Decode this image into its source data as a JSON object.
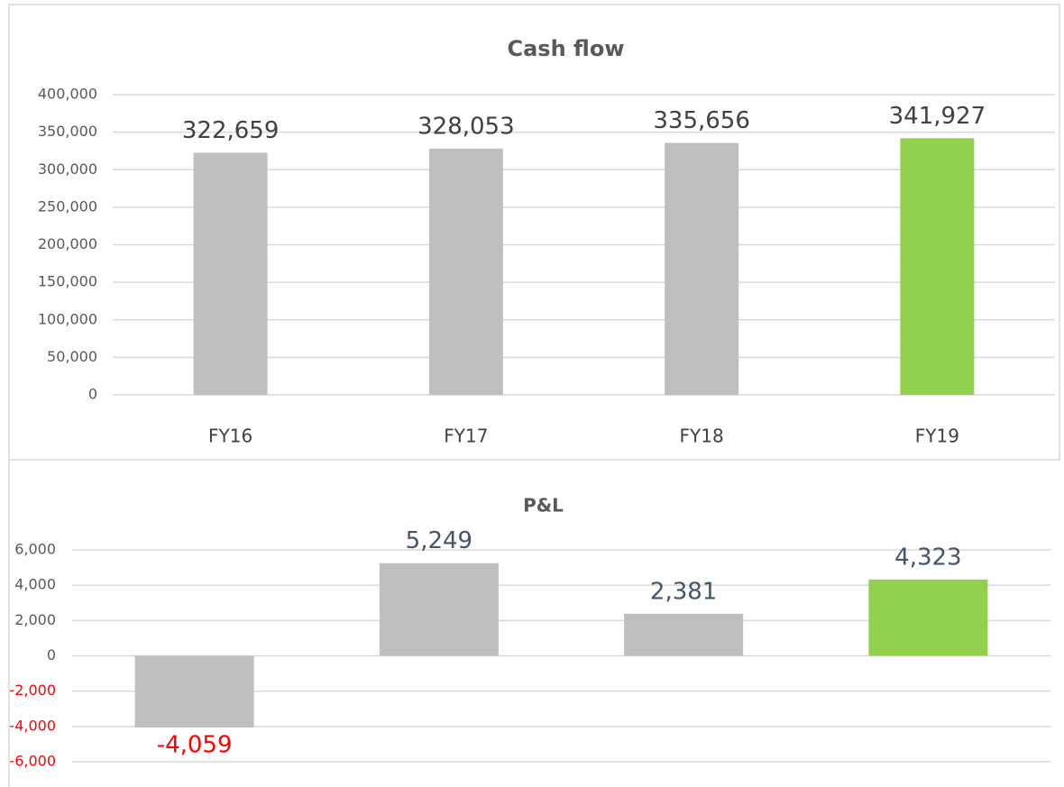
{
  "chart_data": [
    {
      "type": "bar",
      "title": "Cash flow",
      "categories": [
        "FY16",
        "FY17",
        "FY18",
        "FY19"
      ],
      "values": [
        322659,
        328053,
        335656,
        341927
      ],
      "value_labels": [
        "322,659",
        "328,053",
        "335,656",
        "341,927"
      ],
      "colors": [
        "#bfbfbf",
        "#bfbfbf",
        "#bfbfbf",
        "#92d050"
      ],
      "value_label_color": "#404040",
      "ylim": [
        0,
        400000
      ],
      "yticks": [
        0,
        {
          "value": 50000,
          "label": "50,000"
        },
        {
          "value": 100000,
          "label": "100,000"
        },
        {
          "value": 150000,
          "label": "150,000"
        },
        {
          "value": 200000,
          "label": "200,000"
        },
        {
          "value": 250000,
          "label": "250,000"
        },
        {
          "value": 300000,
          "label": "300,000"
        },
        {
          "value": 350000,
          "label": "350,000"
        },
        {
          "value": 400000,
          "label": "400,000"
        }
      ],
      "grid": true
    },
    {
      "type": "bar",
      "title": "P&L",
      "categories": [
        null,
        null,
        null,
        null
      ],
      "values": [
        -4059,
        5249,
        2381,
        4323
      ],
      "value_labels": [
        "-4,059",
        "5,249",
        "2,381",
        "4,323"
      ],
      "colors": [
        "#bfbfbf",
        "#bfbfbf",
        "#bfbfbf",
        "#92d050"
      ],
      "value_label_color": "#44546a",
      "negative_label_color": "#ff0000",
      "ylim": [
        -6000,
        6000
      ],
      "yticks": [
        {
          "value": -6000,
          "label": "-6,000"
        },
        {
          "value": -4000,
          "label": "-4,000"
        },
        {
          "value": -2000,
          "label": "-2,000"
        },
        0,
        {
          "value": 2000,
          "label": "2,000"
        },
        {
          "value": 4000,
          "label": "4,000"
        },
        {
          "value": 6000,
          "label": "6,000"
        }
      ],
      "grid": true
    }
  ]
}
